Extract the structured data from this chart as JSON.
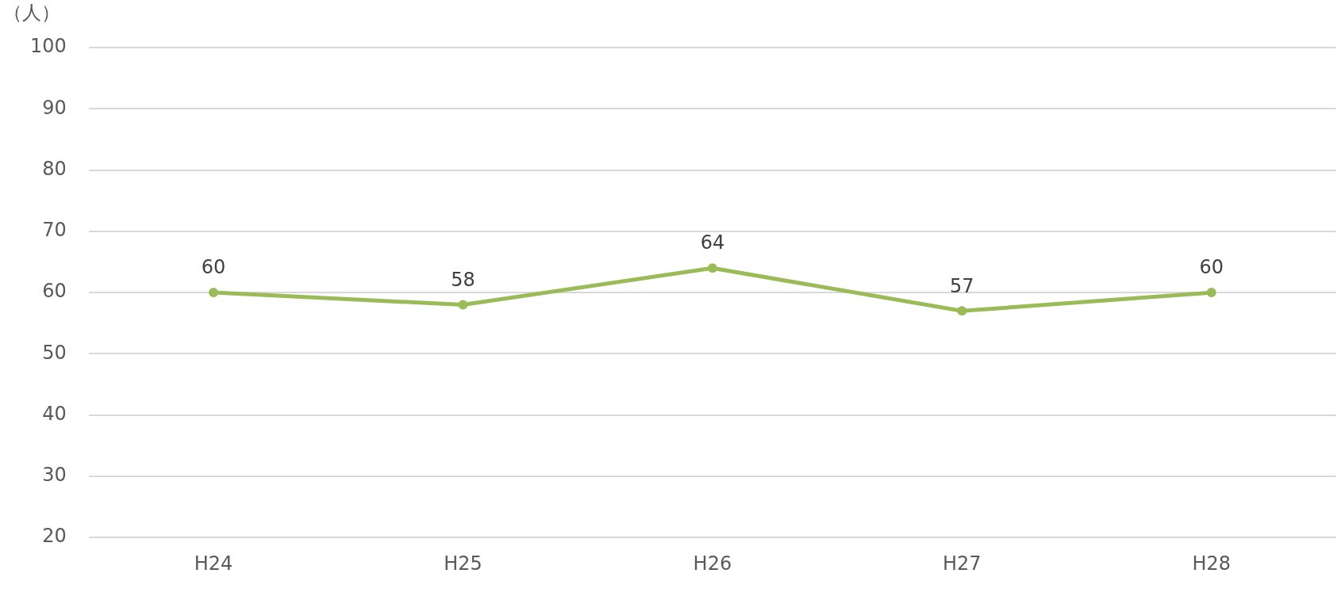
{
  "chart_data": {
    "type": "line",
    "ylabel": "（人）",
    "categories": [
      "H24",
      "H25",
      "H26",
      "H27",
      "H28"
    ],
    "series": [
      {
        "color": "#9bbb59",
        "values": [
          60,
          58,
          64,
          57,
          60
        ]
      }
    ],
    "ylim": [
      20,
      100
    ],
    "yticks": [
      20,
      30,
      40,
      50,
      60,
      70,
      80,
      90,
      100
    ],
    "grid": "y",
    "legend": false,
    "marker": "circle",
    "line_style": "solid",
    "data_labels": true
  }
}
